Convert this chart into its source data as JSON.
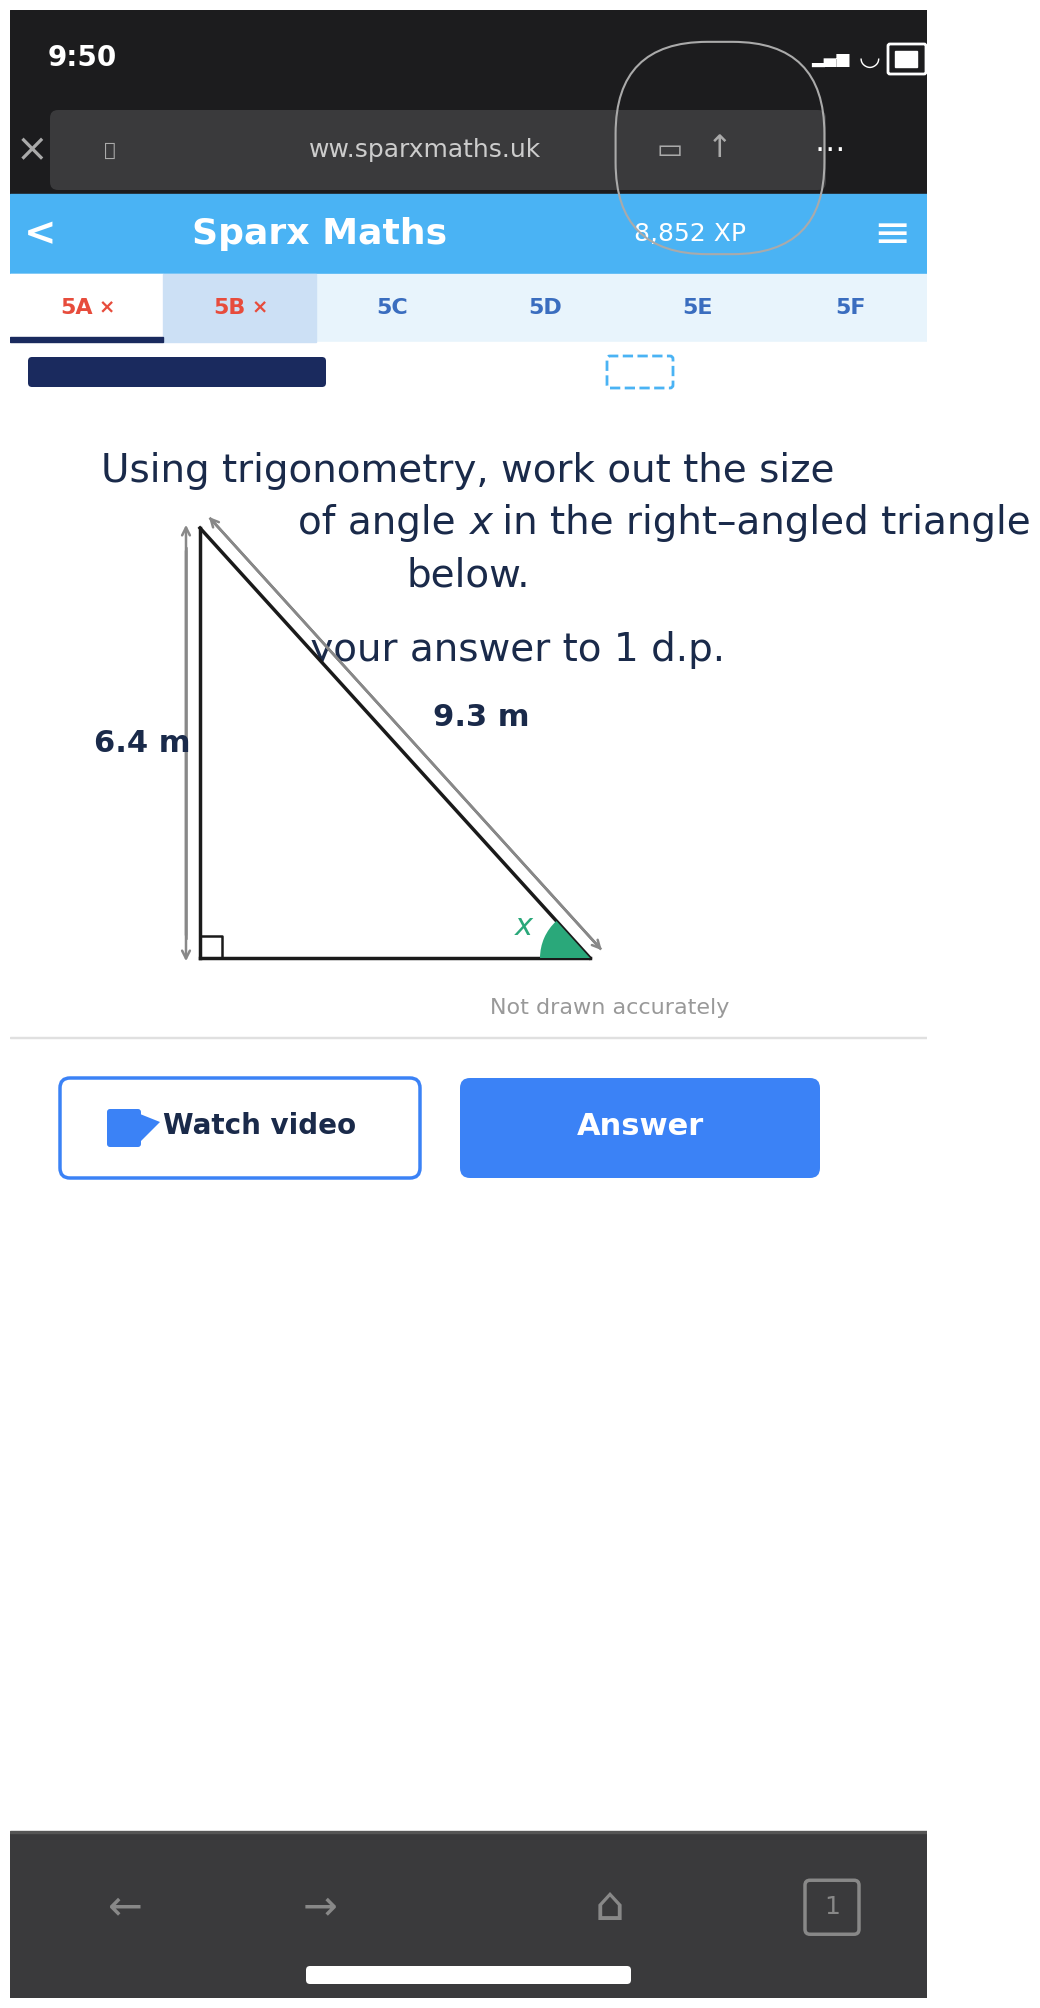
{
  "bg_top": "#1c1c1e",
  "bg_browser": "#2c2c2e",
  "bg_header": "#4ab3f4",
  "bg_white": "#ffffff",
  "bg_bottom": "#3a3a3c",
  "time_text": "9:50",
  "url_text": "ww.sparxmaths.uk",
  "header_title": "Sparx Maths",
  "header_xp": "8,852 XP",
  "tabs": [
    "5A",
    "5B",
    "5C",
    "5D",
    "5E",
    "5F"
  ],
  "question_line1": "Using trigonometry, work out the size",
  "question_line2a": "of angle ",
  "question_x_italic": "x",
  "question_line2b": " in the right–angled triangle",
  "question_line3": "below.",
  "answer_prompt": "Give your answer to 1 d.p.",
  "not_drawn": "Not drawn accurately",
  "side_vertical": "6.4 m",
  "side_hypotenuse": "9.3 m",
  "angle_label": "x",
  "text_color": "#1a2a4a",
  "angle_fill": "#2aa87a",
  "watch_video_text": "Watch video",
  "answer_button_text": "Answer",
  "answer_bg": "#3b82f6",
  "tab_colors": [
    "#e74c3c",
    "#e74c3c",
    "#3a6dbf",
    "#3a6dbf",
    "#3a6dbf",
    "#3a6dbf"
  ],
  "progress_bar_color": "#1a2a5e",
  "watch_border": "#3b82f6",
  "watch_text": "#1a2a4a",
  "watch_icon_color": "#3b82f6"
}
